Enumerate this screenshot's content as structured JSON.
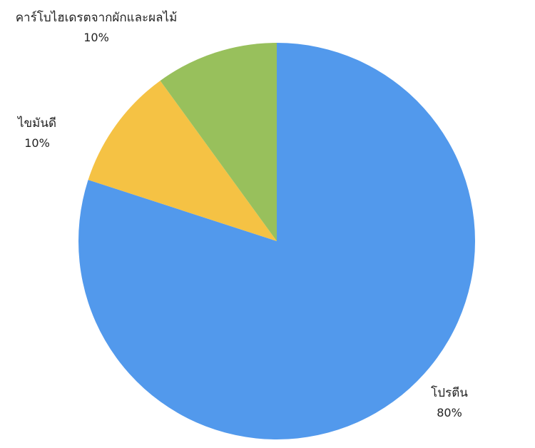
{
  "chart_data": {
    "type": "pie",
    "start_angle_deg": 0,
    "direction": "clockwise",
    "slices": [
      {
        "label": "โปรตีน",
        "value": 80,
        "value_label": "80%",
        "color": "#5299ec"
      },
      {
        "label": "ไขมันดี",
        "value": 10,
        "value_label": "10%",
        "color": "#f5c244"
      },
      {
        "label": "คาร์โบไฮเดรตจากผักและผลไม้",
        "value": 10,
        "value_label": "10%",
        "color": "#98c05c"
      }
    ]
  }
}
